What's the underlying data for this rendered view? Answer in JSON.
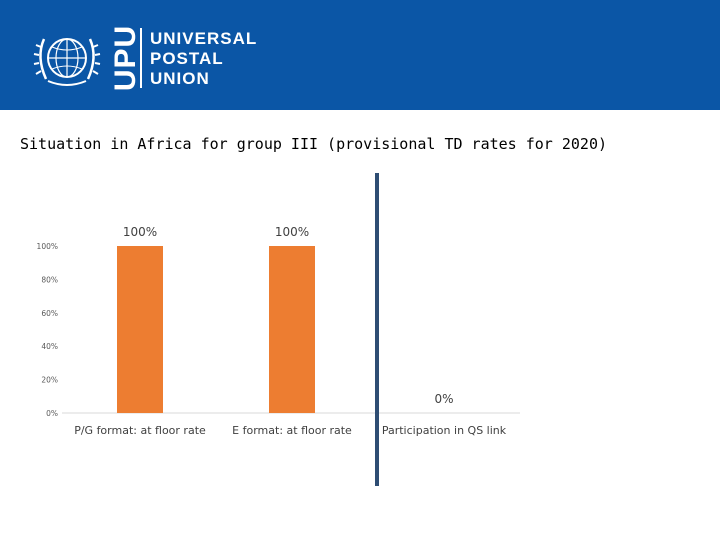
{
  "header": {
    "logo_abbrev": "UPU",
    "logo_lines": [
      "UNIVERSAL",
      "POSTAL",
      "UNION"
    ],
    "banner_color": "#0b56a6"
  },
  "chart_data": {
    "type": "bar",
    "title": "Situation in Africa for group III (provisional TD rates for 2020)",
    "categories": [
      "P/G format: at floor rate",
      "E format: at floor rate",
      "Participation in QS link"
    ],
    "values": [
      100,
      100,
      0
    ],
    "data_labels": [
      "100%",
      "100%",
      "0%"
    ],
    "yticks": [
      "0%",
      "20%",
      "40%",
      "60%",
      "80%",
      "100%"
    ],
    "ylim": [
      0,
      100
    ],
    "xlabel": "",
    "ylabel": "",
    "bar_color": "#ed7d31",
    "divider_color": "#2e4d73",
    "grid": false
  }
}
